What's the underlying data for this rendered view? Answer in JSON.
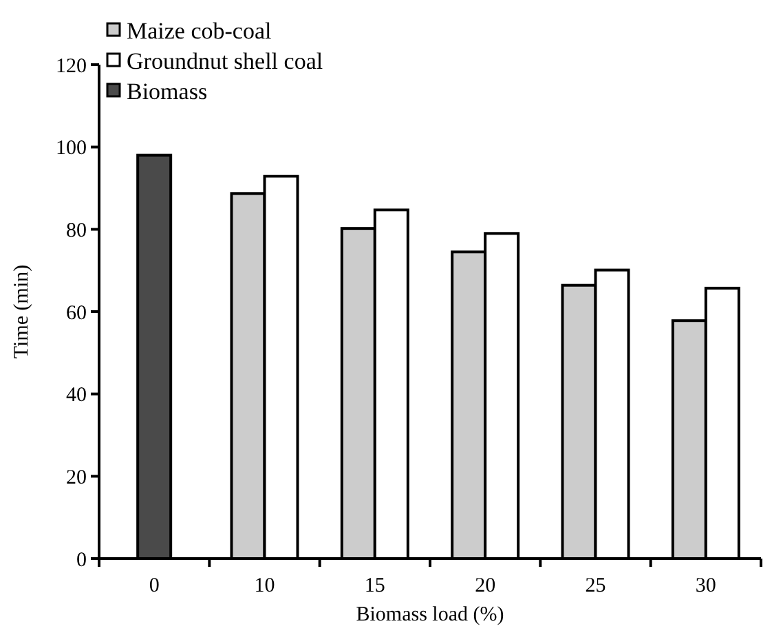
{
  "chart_data": {
    "type": "bar",
    "xlabel": "Biomass load (%)",
    "ylabel": "Time (min)",
    "categories": [
      "0",
      "10",
      "15",
      "20",
      "25",
      "30"
    ],
    "series": [
      {
        "name": "Maize cob-coal",
        "color": "#cccccc",
        "values": [
          null,
          88.7,
          80.2,
          74.5,
          66.4,
          57.8
        ]
      },
      {
        "name": "Groundnut shell coal",
        "color": "#ffffff",
        "values": [
          null,
          92.9,
          84.7,
          79,
          70.1,
          65.7
        ]
      },
      {
        "name": "Biomass",
        "color": "#4a4a4a",
        "values": [
          98,
          null,
          null,
          null,
          null,
          null
        ]
      }
    ],
    "ylim": [
      0,
      120
    ],
    "yticks": [
      0,
      20,
      40,
      60,
      80,
      100,
      120
    ],
    "grid": false,
    "legend": "top left"
  }
}
